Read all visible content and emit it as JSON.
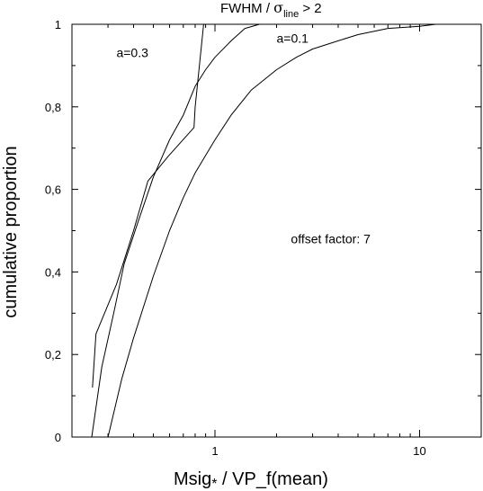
{
  "chart_data": {
    "type": "line",
    "title": {
      "prefix": "FWHM / ",
      "symbol": "σ",
      "subscript": "line",
      "suffix": " > 2"
    },
    "xlabel": {
      "main": "Msig",
      "sub": "*",
      "rest": " / VP_f(mean)"
    },
    "ylabel": "cumulative proportion",
    "x_scale": "log",
    "xlim": [
      0.2,
      20
    ],
    "ylim": [
      0,
      1
    ],
    "x_ticks": [
      {
        "value": 1,
        "label": "1"
      },
      {
        "value": 10,
        "label": "10"
      }
    ],
    "y_ticks": [
      {
        "value": 0,
        "label": "0"
      },
      {
        "value": 0.2,
        "label": "0,2"
      },
      {
        "value": 0.4,
        "label": "0,4"
      },
      {
        "value": 0.6,
        "label": "0,6"
      },
      {
        "value": 0.8,
        "label": "0,8"
      },
      {
        "value": 1,
        "label": "1"
      }
    ],
    "grid": false,
    "annotations": [
      {
        "text": "a=0.3",
        "x": 0.33,
        "y": 0.92
      },
      {
        "text": "a=0.1",
        "x": 2.0,
        "y": 0.955
      },
      {
        "text": "offset factor: 7",
        "x": 2.35,
        "y": 0.47
      }
    ],
    "series": [
      {
        "x": [
          0.252,
          0.262,
          0.33,
          0.4,
          0.47,
          0.59,
          0.79,
          0.8,
          0.88
        ],
        "y": [
          0.12,
          0.25,
          0.37,
          0.5,
          0.62,
          0.68,
          0.75,
          0.8,
          1.0
        ]
      },
      {
        "x": [
          0.25,
          0.28,
          0.32,
          0.36,
          0.42,
          0.5,
          0.6,
          0.7,
          0.8,
          0.9,
          1.0,
          1.2,
          1.4,
          1.65
        ],
        "y": [
          0.0,
          0.17,
          0.3,
          0.42,
          0.52,
          0.63,
          0.72,
          0.78,
          0.85,
          0.89,
          0.92,
          0.96,
          0.99,
          1.0
        ]
      },
      {
        "x": [
          0.3,
          0.35,
          0.4,
          0.5,
          0.6,
          0.7,
          0.8,
          1.0,
          1.2,
          1.5,
          2.0,
          2.5,
          3.0,
          4.0,
          5.0,
          7.0,
          10.0,
          12.0
        ],
        "y": [
          0.0,
          0.14,
          0.24,
          0.39,
          0.5,
          0.58,
          0.64,
          0.72,
          0.78,
          0.84,
          0.89,
          0.92,
          0.94,
          0.96,
          0.975,
          0.99,
          0.995,
          1.0
        ]
      }
    ]
  }
}
